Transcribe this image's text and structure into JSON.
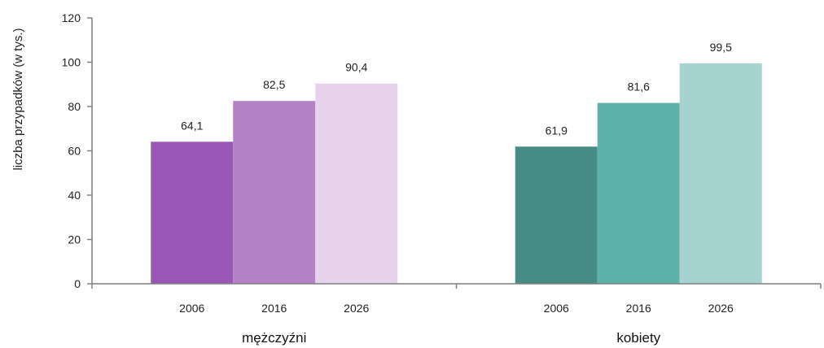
{
  "chart_data": {
    "type": "bar",
    "ylabel": "liczba przypadków (w tys.)",
    "ylim": [
      0,
      120
    ],
    "yticks": [
      0,
      20,
      40,
      60,
      80,
      100,
      120
    ],
    "grid": false,
    "groups": [
      {
        "label": "mężczyźni",
        "bars": [
          {
            "year": "2006",
            "value": 64.1,
            "value_label": "64,1",
            "color": "#9b57b5"
          },
          {
            "year": "2016",
            "value": 82.5,
            "value_label": "82,5",
            "color": "#b581c8"
          },
          {
            "year": "2026",
            "value": 90.4,
            "value_label": "90,4",
            "color": "#e7d2ec"
          }
        ]
      },
      {
        "label": "kobiety",
        "bars": [
          {
            "year": "2006",
            "value": 61.9,
            "value_label": "61,9",
            "color": "#458c85"
          },
          {
            "year": "2016",
            "value": 81.6,
            "value_label": "81,6",
            "color": "#5cb1a8"
          },
          {
            "year": "2026",
            "value": 99.5,
            "value_label": "99,5",
            "color": "#a6d3cf"
          }
        ]
      }
    ]
  }
}
